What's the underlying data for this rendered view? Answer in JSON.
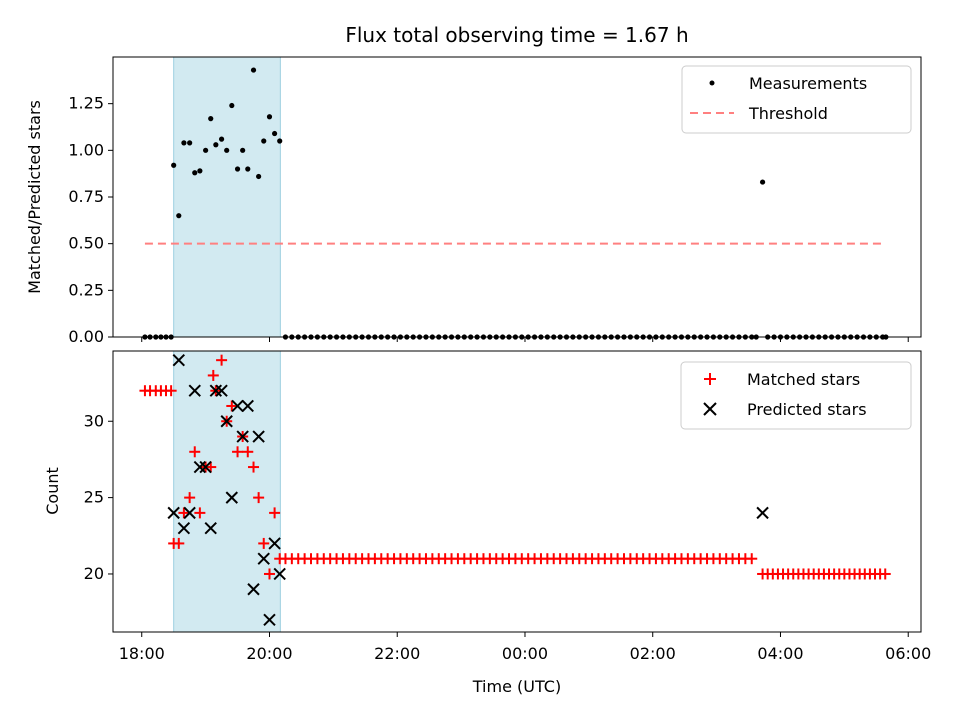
{
  "chart_data": [
    {
      "type": "scatter",
      "title": "Flux total observing time = 1.67 h",
      "xlabel": "",
      "ylabel": "Matched/Predicted stars",
      "ylim": [
        0,
        1.5
      ],
      "yticks": [
        "0.00",
        "0.25",
        "0.50",
        "0.75",
        "1.00",
        "1.25"
      ],
      "ytick_values": [
        0,
        0.25,
        0.5,
        0.75,
        1.0,
        1.25
      ],
      "xlim_hours": [
        17.55,
        30.2
      ],
      "highlight_span_hours": [
        18.5,
        20.17
      ],
      "highlight_color": "#add8e6",
      "legend_position": "top-right",
      "legend": [
        {
          "label": "Measurements",
          "marker": "dot",
          "color": "#000000"
        },
        {
          "label": "Threshold",
          "marker": "dashed-line",
          "color": "#ff8080"
        }
      ],
      "threshold": {
        "name": "Threshold",
        "value": 0.5,
        "x_range_hours": [
          18.05,
          29.65
        ],
        "color": "#ff8080"
      },
      "measurements": {
        "name": "Measurements",
        "color": "#000000",
        "points": [
          [
            18.05,
            0
          ],
          [
            18.13,
            0
          ],
          [
            18.22,
            0
          ],
          [
            18.3,
            0
          ],
          [
            18.38,
            0
          ],
          [
            18.46,
            0
          ],
          [
            18.5,
            0.92
          ],
          [
            18.58,
            0.65
          ],
          [
            18.66,
            1.04
          ],
          [
            18.75,
            1.04
          ],
          [
            18.83,
            0.88
          ],
          [
            18.91,
            0.89
          ],
          [
            19.0,
            1.0
          ],
          [
            19.08,
            1.17
          ],
          [
            19.16,
            1.03
          ],
          [
            19.25,
            1.06
          ],
          [
            19.33,
            1.0
          ],
          [
            19.41,
            1.24
          ],
          [
            19.5,
            0.9
          ],
          [
            19.58,
            1.0
          ],
          [
            19.66,
            0.9
          ],
          [
            19.75,
            1.43
          ],
          [
            19.83,
            0.86
          ],
          [
            19.91,
            1.05
          ],
          [
            20.0,
            1.18
          ],
          [
            20.08,
            1.09
          ],
          [
            20.16,
            1.05
          ],
          [
            20.25,
            0
          ],
          [
            20.35,
            0
          ],
          [
            20.45,
            0
          ],
          [
            20.55,
            0
          ],
          [
            20.65,
            0
          ],
          [
            20.75,
            0
          ],
          [
            20.85,
            0
          ],
          [
            20.95,
            0
          ],
          [
            21.05,
            0
          ],
          [
            21.15,
            0
          ],
          [
            21.25,
            0
          ],
          [
            21.35,
            0
          ],
          [
            21.45,
            0
          ],
          [
            21.55,
            0
          ],
          [
            21.65,
            0
          ],
          [
            21.75,
            0
          ],
          [
            21.85,
            0
          ],
          [
            21.95,
            0
          ],
          [
            22.05,
            0
          ],
          [
            22.15,
            0
          ],
          [
            22.25,
            0
          ],
          [
            22.35,
            0
          ],
          [
            22.45,
            0
          ],
          [
            22.55,
            0
          ],
          [
            22.65,
            0
          ],
          [
            22.75,
            0
          ],
          [
            22.85,
            0
          ],
          [
            22.95,
            0
          ],
          [
            23.05,
            0
          ],
          [
            23.15,
            0
          ],
          [
            23.25,
            0
          ],
          [
            23.35,
            0
          ],
          [
            23.45,
            0
          ],
          [
            23.55,
            0
          ],
          [
            23.65,
            0
          ],
          [
            23.75,
            0
          ],
          [
            23.85,
            0
          ],
          [
            23.95,
            0
          ],
          [
            24.05,
            0
          ],
          [
            24.15,
            0
          ],
          [
            24.25,
            0
          ],
          [
            24.35,
            0
          ],
          [
            24.45,
            0
          ],
          [
            24.55,
            0
          ],
          [
            24.65,
            0
          ],
          [
            24.75,
            0
          ],
          [
            24.85,
            0
          ],
          [
            24.95,
            0
          ],
          [
            25.05,
            0
          ],
          [
            25.15,
            0
          ],
          [
            25.25,
            0
          ],
          [
            25.35,
            0
          ],
          [
            25.45,
            0
          ],
          [
            25.55,
            0
          ],
          [
            25.65,
            0
          ],
          [
            25.75,
            0
          ],
          [
            25.85,
            0
          ],
          [
            25.95,
            0
          ],
          [
            26.05,
            0
          ],
          [
            26.15,
            0
          ],
          [
            26.25,
            0
          ],
          [
            26.35,
            0
          ],
          [
            26.45,
            0
          ],
          [
            26.55,
            0
          ],
          [
            26.65,
            0
          ],
          [
            26.75,
            0
          ],
          [
            26.85,
            0
          ],
          [
            26.95,
            0
          ],
          [
            27.05,
            0
          ],
          [
            27.15,
            0
          ],
          [
            27.25,
            0
          ],
          [
            27.35,
            0
          ],
          [
            27.45,
            0
          ],
          [
            27.55,
            0
          ],
          [
            27.62,
            0
          ],
          [
            27.72,
            0.83
          ],
          [
            27.8,
            0
          ],
          [
            27.9,
            0
          ],
          [
            28.0,
            0
          ],
          [
            28.1,
            0
          ],
          [
            28.2,
            0
          ],
          [
            28.3,
            0
          ],
          [
            28.4,
            0
          ],
          [
            28.5,
            0
          ],
          [
            28.6,
            0
          ],
          [
            28.7,
            0
          ],
          [
            28.8,
            0
          ],
          [
            28.9,
            0
          ],
          [
            29.0,
            0
          ],
          [
            29.1,
            0
          ],
          [
            29.2,
            0
          ],
          [
            29.3,
            0
          ],
          [
            29.4,
            0
          ],
          [
            29.5,
            0
          ],
          [
            29.6,
            0
          ],
          [
            29.65,
            0
          ]
        ]
      }
    },
    {
      "type": "scatter",
      "title": "",
      "xlabel": "Time (UTC)",
      "ylabel": "Count",
      "ylim": [
        16.2,
        34.6
      ],
      "yticks": [
        "20",
        "25",
        "30"
      ],
      "ytick_values": [
        20,
        25,
        30
      ],
      "xticks": [
        "18:00",
        "20:00",
        "22:00",
        "00:00",
        "02:00",
        "04:00",
        "06:00"
      ],
      "xtick_hours": [
        18,
        20,
        22,
        24,
        26,
        28,
        30
      ],
      "legend_position": "top-right",
      "legend": [
        {
          "label": "Matched stars",
          "marker": "plus",
          "color": "#ff0000"
        },
        {
          "label": "Predicted stars",
          "marker": "x",
          "color": "#000000"
        }
      ],
      "matched": {
        "name": "Matched stars",
        "color": "#ff0000",
        "points": [
          [
            18.05,
            32
          ],
          [
            18.13,
            32
          ],
          [
            18.22,
            32
          ],
          [
            18.3,
            32
          ],
          [
            18.38,
            32
          ],
          [
            18.46,
            32
          ],
          [
            18.5,
            22
          ],
          [
            18.58,
            22
          ],
          [
            18.66,
            24
          ],
          [
            18.75,
            25
          ],
          [
            18.83,
            28
          ],
          [
            18.91,
            24
          ],
          [
            19.0,
            27
          ],
          [
            19.08,
            27
          ],
          [
            19.12,
            33
          ],
          [
            19.16,
            32
          ],
          [
            19.25,
            34
          ],
          [
            19.33,
            30
          ],
          [
            19.41,
            31
          ],
          [
            19.5,
            28
          ],
          [
            19.58,
            29
          ],
          [
            19.66,
            28
          ],
          [
            19.75,
            27
          ],
          [
            19.83,
            25
          ],
          [
            19.91,
            22
          ],
          [
            20.0,
            20
          ],
          [
            20.08,
            24
          ],
          [
            20.16,
            21
          ]
        ],
        "flat_segments": [
          {
            "from": 20.25,
            "to": 27.62,
            "step": 0.1,
            "value": 21
          },
          {
            "from": 27.72,
            "to": 29.65,
            "step": 0.08,
            "value": 20
          }
        ]
      },
      "predicted": {
        "name": "Predicted stars",
        "color": "#000000",
        "points": [
          [
            18.5,
            24
          ],
          [
            18.58,
            34
          ],
          [
            18.66,
            23
          ],
          [
            18.75,
            24
          ],
          [
            18.83,
            32
          ],
          [
            18.91,
            27
          ],
          [
            19.0,
            27
          ],
          [
            19.08,
            23
          ],
          [
            19.16,
            32
          ],
          [
            19.25,
            32
          ],
          [
            19.33,
            30
          ],
          [
            19.41,
            25
          ],
          [
            19.5,
            31
          ],
          [
            19.58,
            29
          ],
          [
            19.66,
            31
          ],
          [
            19.75,
            19
          ],
          [
            19.83,
            29
          ],
          [
            19.91,
            21
          ],
          [
            20.0,
            17
          ],
          [
            20.08,
            22
          ],
          [
            20.16,
            20
          ],
          [
            27.72,
            24
          ]
        ]
      }
    }
  ]
}
